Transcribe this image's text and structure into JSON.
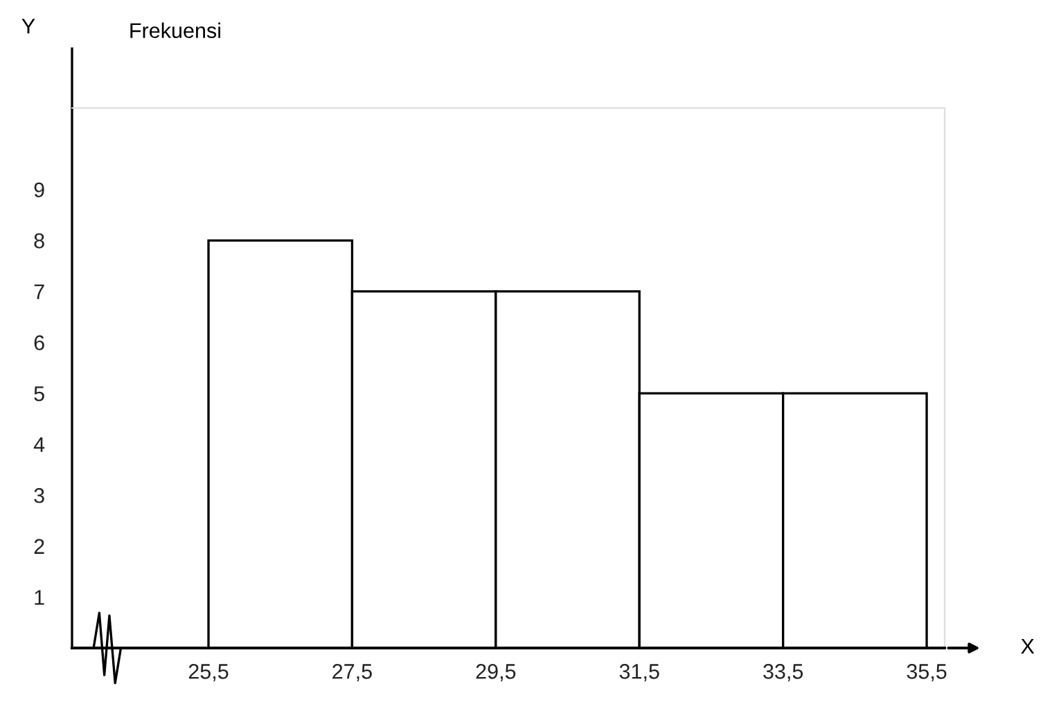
{
  "chart_data": {
    "type": "histogram",
    "xlabel": "X",
    "ylabel": "Y",
    "annotations": [
      "Frekuensi"
    ],
    "bins": [
      25.5,
      27.5,
      29.5,
      31.5,
      33.5,
      35.5
    ],
    "values": [
      8,
      7,
      7,
      5,
      5
    ],
    "color": "#ffffff",
    "xlim": [
      23.6,
      35.75
    ],
    "ylim": [
      0,
      10.6
    ],
    "xticks": [
      {
        "value": 25.5,
        "label": "25,5"
      },
      {
        "value": 27.5,
        "label": "27,5"
      },
      {
        "value": 29.5,
        "label": "29,5"
      },
      {
        "value": 31.5,
        "label": "31,5"
      },
      {
        "value": 33.5,
        "label": "33,5"
      },
      {
        "value": 35.5,
        "label": "35,5"
      }
    ],
    "yticks": [
      1,
      2,
      3,
      4,
      5,
      6,
      7,
      8,
      9
    ],
    "grid": false
  }
}
